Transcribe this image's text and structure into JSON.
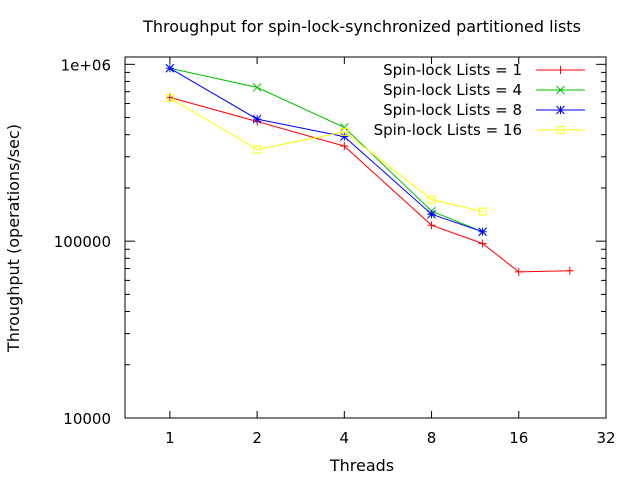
{
  "chart_data": {
    "type": "line",
    "title": "Throughput for spin-lock-synchronized partitioned lists",
    "xlabel": "Threads",
    "ylabel": "Throughput (operations/sec)",
    "xscale": "log2",
    "yscale": "log10",
    "xlim": [
      0.7,
      32
    ],
    "ylim": [
      10000,
      1100000
    ],
    "xticks": [
      1,
      2,
      4,
      8,
      16,
      32
    ],
    "xtick_labels": [
      "1",
      "2",
      "4",
      "8",
      "16",
      "32"
    ],
    "yticks": [
      10000,
      100000,
      1000000
    ],
    "ytick_labels": [
      "10000",
      "100000",
      "1e+06"
    ],
    "grid": false,
    "legend_position": "top-right",
    "series": [
      {
        "name": "Spin-lock Lists = 1",
        "color": "#ff0000",
        "marker": "plus",
        "x": [
          1,
          2,
          4,
          8,
          12,
          16,
          24
        ],
        "y": [
          650000,
          475000,
          345000,
          123000,
          97000,
          67000,
          68000
        ]
      },
      {
        "name": "Spin-lock Lists = 4",
        "color": "#00c000",
        "marker": "cross",
        "x": [
          1,
          2,
          4,
          8,
          12
        ],
        "y": [
          950000,
          740000,
          440000,
          148000,
          113000
        ]
      },
      {
        "name": "Spin-lock Lists = 8",
        "color": "#0000ff",
        "marker": "star",
        "x": [
          1,
          2,
          4,
          8,
          12
        ],
        "y": [
          950000,
          490000,
          390000,
          142000,
          113000
        ]
      },
      {
        "name": "Spin-lock Lists = 16",
        "color": "#ffff00",
        "marker": "square",
        "x": [
          1,
          2,
          4,
          8,
          12
        ],
        "y": [
          645000,
          330000,
          415000,
          172000,
          147000
        ]
      }
    ]
  }
}
